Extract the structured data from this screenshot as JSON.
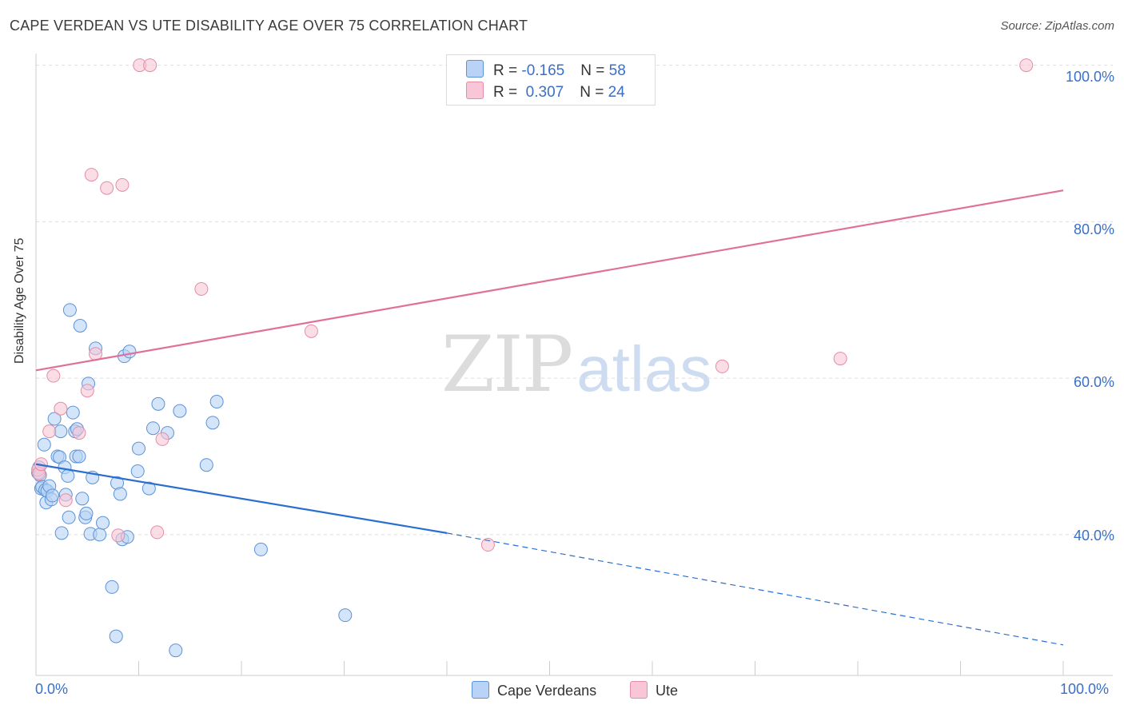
{
  "header": {
    "title": "CAPE VERDEAN VS UTE DISABILITY AGE OVER 75 CORRELATION CHART",
    "source": "Source: ZipAtlas.com"
  },
  "watermark": {
    "zip": "ZIP",
    "atlas": "atlas"
  },
  "colors": {
    "blue_fill": "#b8d3f5",
    "blue_stroke": "#5b92d8",
    "blue_line": "#2a6fd0",
    "pink_fill": "#f8c6d6",
    "pink_stroke": "#e58ca8",
    "pink_line": "#e0709a",
    "axis_text": "#3a6fc8"
  },
  "legend_top": {
    "rows": [
      {
        "r_label": "R = ",
        "r_value": "-0.165",
        "n_label": "N = ",
        "n_value": "58"
      },
      {
        "r_label": "R = ",
        "r_value": " 0.307",
        "n_label": "N = ",
        "n_value": "24"
      }
    ]
  },
  "legend_bottom": {
    "items": [
      "Cape Verdeans",
      "Ute"
    ]
  },
  "chart_data": {
    "type": "scatter",
    "title": "CAPE VERDEAN VS UTE DISABILITY AGE OVER 75 CORRELATION CHART",
    "xlabel": "",
    "ylabel": "Disability Age Over 75",
    "xlim": [
      0,
      100
    ],
    "ylim": [
      22,
      102
    ],
    "x_tick_labels": [
      "0.0%",
      "100.0%"
    ],
    "y_ticks": [
      40,
      60,
      80,
      100
    ],
    "y_tick_labels": [
      "40.0%",
      "60.0%",
      "80.0%",
      "100.0%"
    ],
    "grid": true,
    "legend": "bottom-center",
    "series": [
      {
        "name": "Cape Verdeans",
        "r": -0.165,
        "n": 58,
        "trend": {
          "x0": 0,
          "y0": 49.0,
          "x1": 40,
          "y1": 40.2,
          "dashed_to_x": 100,
          "dashed_to_y": 25.9
        },
        "points": [
          [
            0.2,
            47.9
          ],
          [
            0.3,
            48.6
          ],
          [
            0.4,
            47.6
          ],
          [
            0.5,
            45.9
          ],
          [
            0.6,
            46.1
          ],
          [
            0.8,
            51.5
          ],
          [
            0.9,
            45.7
          ],
          [
            1.0,
            44.1
          ],
          [
            1.1,
            45.6
          ],
          [
            1.3,
            46.2
          ],
          [
            1.5,
            44.5
          ],
          [
            1.6,
            45.0
          ],
          [
            1.8,
            54.8
          ],
          [
            2.1,
            50.0
          ],
          [
            2.3,
            49.9
          ],
          [
            2.4,
            53.2
          ],
          [
            2.5,
            40.2
          ],
          [
            2.8,
            48.6
          ],
          [
            2.9,
            45.1
          ],
          [
            3.1,
            47.5
          ],
          [
            3.2,
            42.2
          ],
          [
            3.3,
            68.7
          ],
          [
            3.6,
            55.6
          ],
          [
            3.8,
            53.2
          ],
          [
            3.9,
            50.0
          ],
          [
            4.2,
            50.0
          ],
          [
            4.0,
            53.5
          ],
          [
            4.3,
            66.7
          ],
          [
            4.5,
            44.6
          ],
          [
            4.8,
            42.2
          ],
          [
            4.9,
            42.7
          ],
          [
            5.1,
            59.3
          ],
          [
            5.3,
            40.1
          ],
          [
            5.5,
            47.3
          ],
          [
            5.8,
            63.8
          ],
          [
            6.2,
            40.0
          ],
          [
            6.5,
            41.5
          ],
          [
            7.4,
            33.3
          ],
          [
            7.8,
            27.0
          ],
          [
            7.9,
            46.6
          ],
          [
            8.2,
            45.2
          ],
          [
            8.4,
            39.4
          ],
          [
            8.6,
            62.8
          ],
          [
            8.9,
            39.7
          ],
          [
            9.1,
            63.4
          ],
          [
            9.9,
            48.1
          ],
          [
            10.0,
            51.0
          ],
          [
            11.0,
            45.9
          ],
          [
            11.4,
            53.6
          ],
          [
            11.9,
            56.7
          ],
          [
            12.8,
            53.0
          ],
          [
            13.6,
            25.2
          ],
          [
            14.0,
            55.8
          ],
          [
            16.6,
            48.9
          ],
          [
            17.2,
            54.3
          ],
          [
            17.6,
            57.0
          ],
          [
            21.9,
            38.1
          ],
          [
            30.1,
            29.7
          ]
        ]
      },
      {
        "name": "Ute",
        "r": 0.307,
        "n": 24,
        "trend": {
          "x0": 0,
          "y0": 61.0,
          "x1": 100,
          "y1": 84.0
        },
        "points": [
          [
            0.2,
            48.3
          ],
          [
            0.3,
            47.8
          ],
          [
            0.5,
            49.0
          ],
          [
            1.3,
            53.2
          ],
          [
            1.7,
            60.3
          ],
          [
            2.4,
            56.1
          ],
          [
            2.9,
            44.4
          ],
          [
            4.2,
            53.0
          ],
          [
            5.0,
            58.4
          ],
          [
            5.4,
            86.0
          ],
          [
            5.8,
            63.1
          ],
          [
            6.9,
            84.3
          ],
          [
            8.0,
            39.9
          ],
          [
            8.4,
            84.7
          ],
          [
            10.1,
            100.0
          ],
          [
            11.1,
            100.0
          ],
          [
            11.8,
            40.3
          ],
          [
            12.3,
            52.2
          ],
          [
            16.1,
            71.4
          ],
          [
            26.8,
            66.0
          ],
          [
            44.0,
            38.7
          ],
          [
            66.8,
            61.5
          ],
          [
            78.3,
            62.5
          ],
          [
            96.4,
            100.0
          ]
        ]
      }
    ]
  }
}
